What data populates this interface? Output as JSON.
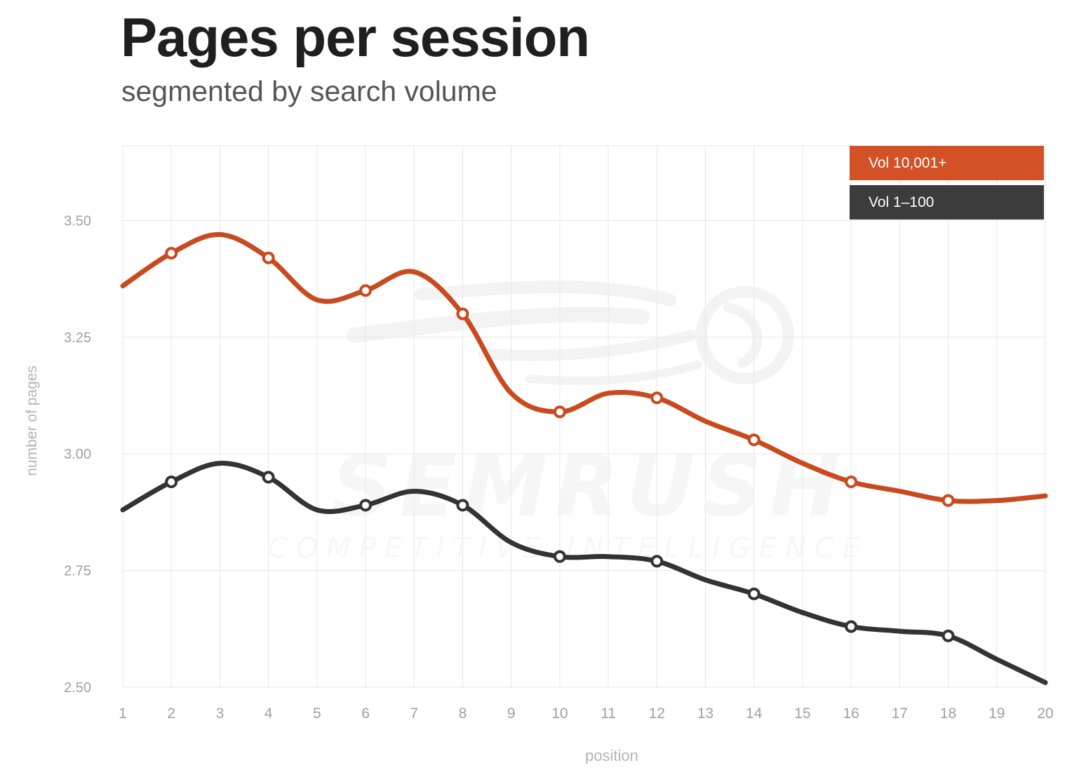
{
  "header": {
    "title": "Pages per session",
    "subtitle": "segmented by search volume"
  },
  "colors": {
    "orange": "#c84a1e",
    "orange_legend": "#d25226",
    "dark": "#333333",
    "dark_legend": "#3c3c3c",
    "grid": "#e6e6e6",
    "tick": "#a0a0a0",
    "axis_label": "#b4b4b4"
  },
  "chart_data": {
    "type": "line",
    "title": "Pages per session",
    "subtitle": "segmented by search volume",
    "xlabel": "position",
    "ylabel": "number of pages",
    "x": [
      1,
      2,
      3,
      4,
      5,
      6,
      7,
      8,
      9,
      10,
      11,
      12,
      13,
      14,
      15,
      16,
      17,
      18,
      19,
      20
    ],
    "xlim": [
      1,
      20
    ],
    "ylim": [
      2.5,
      3.66
    ],
    "yticks": [
      2.5,
      2.75,
      3.0,
      3.25,
      3.5
    ],
    "ytick_labels": [
      "2.50",
      "2.75",
      "3.00",
      "3.25",
      "3.50"
    ],
    "xtick_labels": [
      "1",
      "2",
      "3",
      "4",
      "5",
      "6",
      "7",
      "8",
      "9",
      "10",
      "11",
      "12",
      "13",
      "14",
      "15",
      "16",
      "17",
      "18",
      "19",
      "20"
    ],
    "grid": true,
    "legend_position": "top-right",
    "series": [
      {
        "name": "Vol 10,001+",
        "color": "#c84a1e",
        "legend_color": "#d25226",
        "values": [
          3.36,
          3.43,
          3.47,
          3.42,
          3.33,
          3.35,
          3.39,
          3.3,
          3.13,
          3.09,
          3.13,
          3.12,
          3.07,
          3.03,
          2.98,
          2.94,
          2.92,
          2.9,
          2.9,
          2.91
        ],
        "markers": [
          2,
          4,
          6,
          8,
          10,
          12,
          14,
          16,
          18
        ]
      },
      {
        "name": "Vol 1–100",
        "color": "#333333",
        "legend_color": "#3c3c3c",
        "values": [
          2.88,
          2.94,
          2.98,
          2.95,
          2.88,
          2.89,
          2.92,
          2.89,
          2.81,
          2.78,
          2.78,
          2.77,
          2.73,
          2.7,
          2.66,
          2.63,
          2.62,
          2.61,
          2.56,
          2.51
        ],
        "markers": [
          2,
          4,
          6,
          8,
          10,
          12,
          14,
          16,
          18
        ]
      }
    ]
  }
}
